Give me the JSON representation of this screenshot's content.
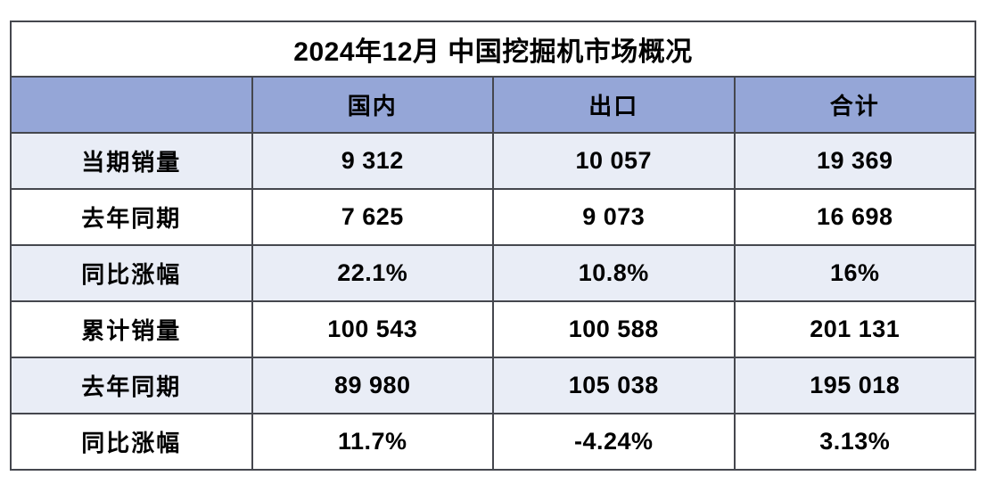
{
  "chart_data": {
    "type": "table",
    "title": "2024年12月 中国挖掘机市场概况",
    "column_headers": [
      "",
      "国内",
      "出口",
      "合计"
    ],
    "rows": [
      {
        "label": "当期销量",
        "values": [
          "9 312",
          "10 057",
          "19 369"
        ]
      },
      {
        "label": "去年同期",
        "values": [
          "7 625",
          "9 073",
          "16 698"
        ]
      },
      {
        "label": "同比涨幅",
        "values": [
          "22.1%",
          "10.8%",
          "16%"
        ]
      },
      {
        "label": "累计销量",
        "values": [
          "100 543",
          "100 588",
          "201 131"
        ]
      },
      {
        "label": "去年同期",
        "values": [
          "89 980",
          "105 038",
          "195 018"
        ]
      },
      {
        "label": "同比涨幅",
        "values": [
          "11.7%",
          "-4.24%",
          "3.13%"
        ]
      }
    ],
    "layout": {
      "columns_equal_width": true,
      "alternating_row_shading": "rows 1,3,5 shaded"
    }
  },
  "colors": {
    "header_bg": "#95a6d7",
    "row_alt_bg": "#e9edf6",
    "border": "#45474e",
    "text": "#000000",
    "background": "#ffffff"
  }
}
